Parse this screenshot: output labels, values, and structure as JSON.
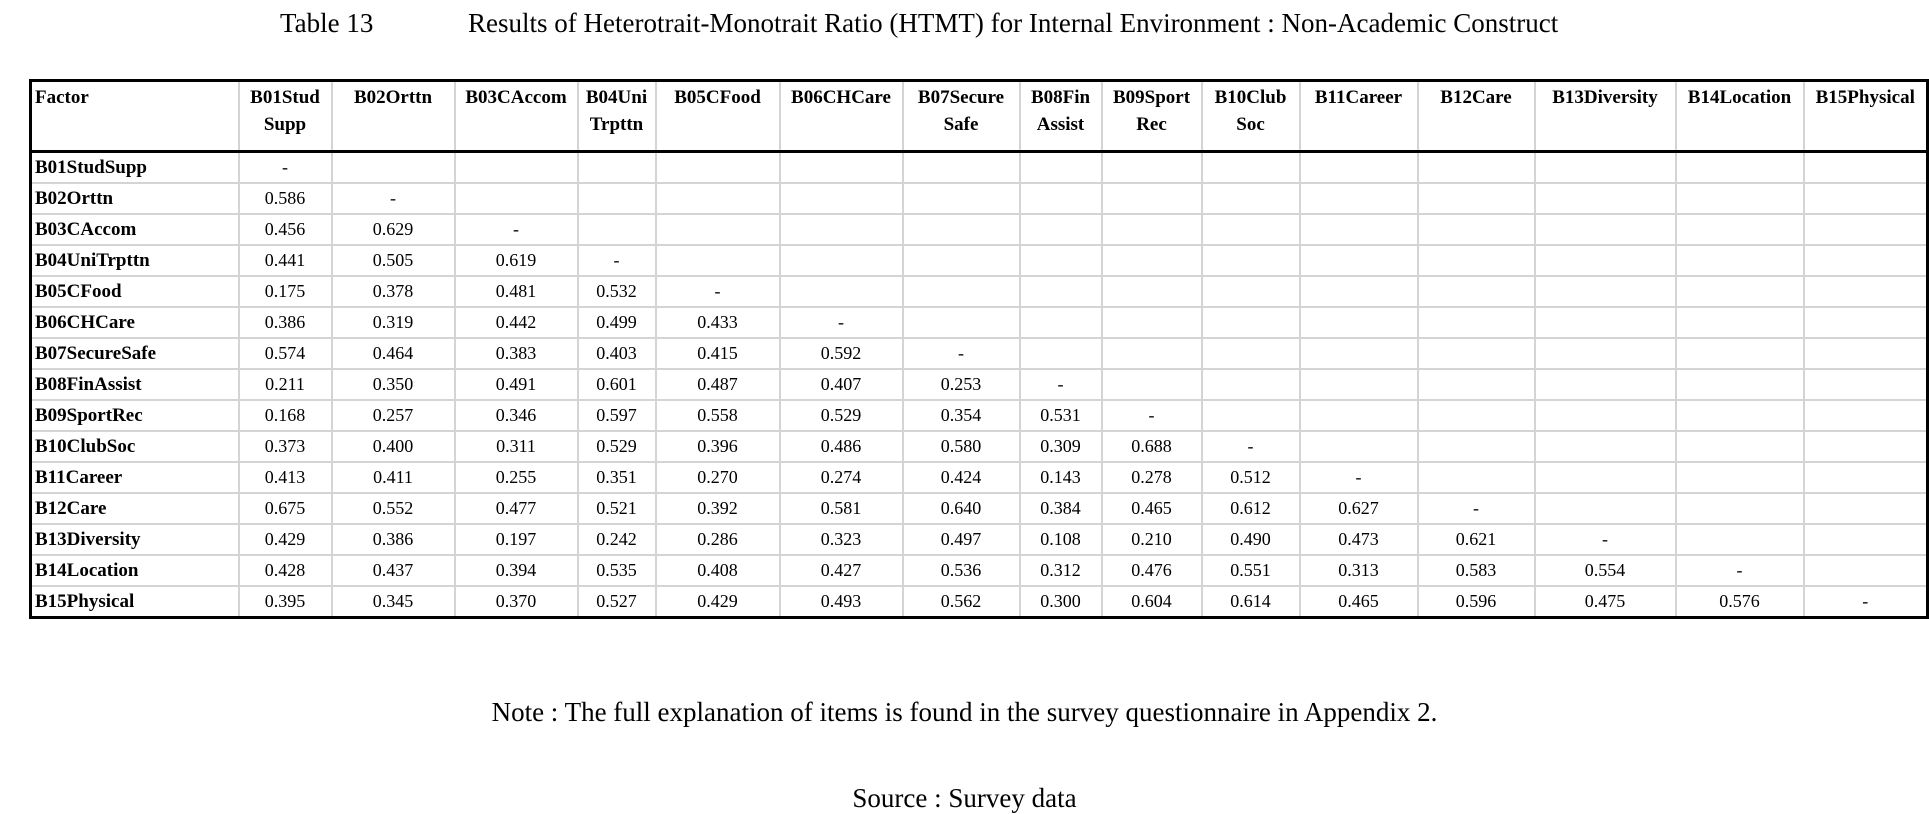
{
  "caption": {
    "label": "Table 13",
    "title": "Results of Heterotrait-Monotrait Ratio (HTMT) for Internal Environment : Non-Academic Construct"
  },
  "table": {
    "header": [
      "Factor",
      "B01Stud\nSupp",
      "B02Orttn",
      "B03CAccom",
      "B04Uni\nTrpttn",
      "B05CFood",
      "B06CHCare",
      "B07Secure\nSafe",
      "B08Fin\nAssist",
      "B09Sport\nRec",
      "B10Club\nSoc",
      "B11Career",
      "B12Care",
      "B13Diversity",
      "B14Location",
      "B15Physical"
    ],
    "rows": [
      [
        "B01StudSupp",
        "-"
      ],
      [
        "B02Orttn",
        "0.586",
        "-"
      ],
      [
        "B03CAccom",
        "0.456",
        "0.629",
        "-"
      ],
      [
        "B04UniTrpttn",
        "0.441",
        "0.505",
        "0.619",
        "-"
      ],
      [
        "B05CFood",
        "0.175",
        "0.378",
        "0.481",
        "0.532",
        "-"
      ],
      [
        "B06CHCare",
        "0.386",
        "0.319",
        "0.442",
        "0.499",
        "0.433",
        "-"
      ],
      [
        "B07SecureSafe",
        "0.574",
        "0.464",
        "0.383",
        "0.403",
        "0.415",
        "0.592",
        "-"
      ],
      [
        "B08FinAssist",
        "0.211",
        "0.350",
        "0.491",
        "0.601",
        "0.487",
        "0.407",
        "0.253",
        "-"
      ],
      [
        "B09SportRec",
        "0.168",
        "0.257",
        "0.346",
        "0.597",
        "0.558",
        "0.529",
        "0.354",
        "0.531",
        "-"
      ],
      [
        "B10ClubSoc",
        "0.373",
        "0.400",
        "0.311",
        "0.529",
        "0.396",
        "0.486",
        "0.580",
        "0.309",
        "0.688",
        "-"
      ],
      [
        "B11Career",
        "0.413",
        "0.411",
        "0.255",
        "0.351",
        "0.270",
        "0.274",
        "0.424",
        "0.143",
        "0.278",
        "0.512",
        "-"
      ],
      [
        "B12Care",
        "0.675",
        "0.552",
        "0.477",
        "0.521",
        "0.392",
        "0.581",
        "0.640",
        "0.384",
        "0.465",
        "0.612",
        "0.627",
        "-"
      ],
      [
        "B13Diversity",
        "0.429",
        "0.386",
        "0.197",
        "0.242",
        "0.286",
        "0.323",
        "0.497",
        "0.108",
        "0.210",
        "0.490",
        "0.473",
        "0.621",
        "-"
      ],
      [
        "B14Location",
        "0.428",
        "0.437",
        "0.394",
        "0.535",
        "0.408",
        "0.427",
        "0.536",
        "0.312",
        "0.476",
        "0.551",
        "0.313",
        "0.583",
        "0.554",
        "-"
      ],
      [
        "B15Physical",
        "0.395",
        "0.345",
        "0.370",
        "0.527",
        "0.429",
        "0.493",
        "0.562",
        "0.300",
        "0.604",
        "0.614",
        "0.465",
        "0.596",
        "0.475",
        "0.576",
        "-"
      ]
    ]
  },
  "note": "Note : The full explanation of items is found in the survey questionnaire in Appendix 2.",
  "source": "Source : Survey data"
}
